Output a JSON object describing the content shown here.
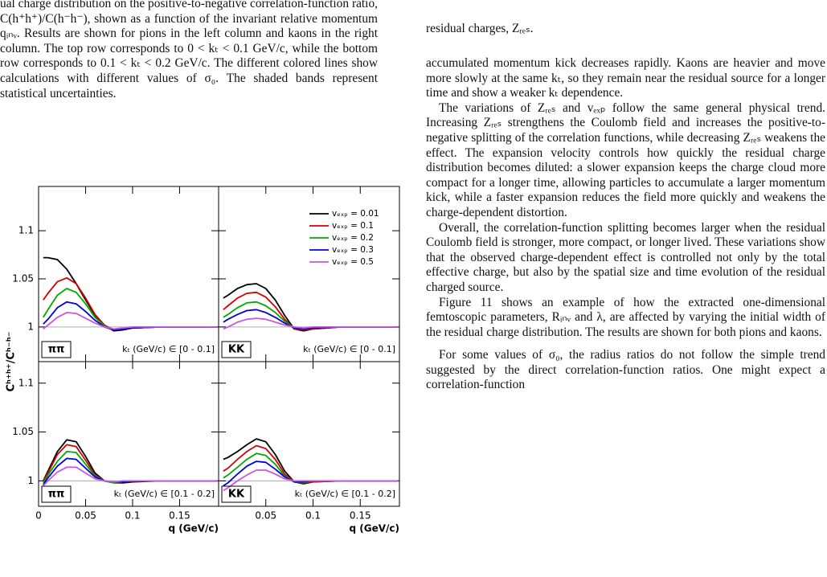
{
  "left_caption": "ual charge distribution on the positive-to-negative correlation-function ratio, C(h⁺h⁺)/C(h⁻h⁻), shown as a function of the invariant relative momentum qᵢₙᵥ. Results are shown for pions in the left column and kaons in the right column. The top row corresponds to 0 < kₜ < 0.1 GeV/c, while the bottom row corresponds to 0.1 < kₜ < 0.2 GeV/c. The different colored lines show calculations with different values of σ₀. The shaded bands represent statistical uncertainties.",
  "right_column": {
    "top_line": "residual charges, Zᵣₑₛ.",
    "paragraphs": [
      "accumulated momentum kick decreases rapidly. Kaons are heavier and move more slowly at the same kₜ, so they remain near the residual source for a longer time and show a weaker kₜ dependence.",
      "The variations of Zᵣₑₛ and vₑₓₚ follow the same general physical trend. Increasing Zᵣₑₛ strengthens the Coulomb field and increases the positive-to-negative splitting of the correlation functions, while decreasing Zᵣₑₛ weakens the effect. The expansion velocity controls how quickly the residual charge distribution becomes diluted: a slower expansion keeps the charge cloud more compact for a longer time, allowing particles to accumulate a larger momentum kick, while a faster expansion reduces the field more quickly and weakens the charge-dependent distortion.",
      "Overall, the correlation-function splitting becomes larger when the residual Coulomb field is stronger, more compact, or longer lived. These variations show that the observed charge-dependent effect is controlled not only by the total effective charge, but also by the spatial size and time evolution of the residual charged source.",
      "Figure 11 shows an example of how the extracted one-dimensional femtoscopic parameters, Rᵢₙᵥ and λ, are affected by varying the initial width of the residual charge distribution. The results are shown for both pions and kaons.",
      "For some values of σ₀, the radius ratios do not follow the simple trend suggested by the direct correlation-function ratios. One might expect a correlation-function"
    ]
  },
  "chart_data": [
    {
      "type": "line",
      "panel_label": "ππ",
      "kt_label": "kₜ (GeV/c) ∈ [0 - 0.1]",
      "ylabel": "Cʰ⁺ʰ⁺/Cʰ⁻ʰ⁻",
      "x": [
        0.005,
        0.01,
        0.02,
        0.03,
        0.04,
        0.05,
        0.06,
        0.07,
        0.08,
        0.09,
        0.1,
        0.13,
        0.19
      ],
      "xlim": [
        0,
        0.1915
      ],
      "ylim": [
        0.964,
        1.146
      ],
      "xticks": [
        0,
        0.05,
        0.1,
        0.15
      ],
      "yticks": [
        1,
        1.05,
        1.1
      ],
      "xtick_labels": false,
      "ytick_labels": true,
      "reference_line": 1,
      "series": [
        {
          "color": "#000000",
          "values": [
            1.072,
            1.072,
            1.07,
            1.06,
            1.045,
            1.028,
            1.012,
            1.002,
            0.996,
            0.997,
            0.999,
            1.0,
            1.0
          ]
        },
        {
          "color": "#d40000",
          "values": [
            1.028,
            1.035,
            1.047,
            1.051,
            1.045,
            1.03,
            1.013,
            1.002,
            0.997,
            0.998,
            0.999,
            1.0,
            1.0
          ]
        },
        {
          "color": "#00a800",
          "values": [
            1.01,
            1.018,
            1.033,
            1.04,
            1.036,
            1.024,
            1.01,
            1.001,
            0.997,
            0.998,
            0.999,
            1.0,
            1.0
          ]
        },
        {
          "color": "#0000dc",
          "values": [
            1.003,
            1.008,
            1.02,
            1.026,
            1.024,
            1.016,
            1.007,
            1.0,
            0.997,
            0.998,
            0.999,
            1.0,
            1.0
          ]
        },
        {
          "color": "#cc55dd",
          "values": [
            0.998,
            1.002,
            1.01,
            1.015,
            1.014,
            1.009,
            1.004,
            1.0,
            0.998,
            0.999,
            1.0,
            1.0,
            1.0
          ]
        }
      ]
    },
    {
      "type": "line",
      "panel_label": "KK",
      "kt_label": "kₜ (GeV/c) ∈ [0 - 0.1]",
      "x": [
        0.005,
        0.01,
        0.02,
        0.03,
        0.04,
        0.05,
        0.06,
        0.07,
        0.08,
        0.09,
        0.1,
        0.13,
        0.19
      ],
      "xlim": [
        0,
        0.1915
      ],
      "ylim": [
        0.964,
        1.146
      ],
      "xticks": [
        0.05,
        0.1,
        0.15
      ],
      "yticks": [
        1,
        1.05,
        1.1
      ],
      "xtick_labels": false,
      "ytick_labels": false,
      "reference_line": 1,
      "series": [
        {
          "name": "vₑₓₚ = 0.01",
          "color": "#000000",
          "values": [
            1.03,
            1.033,
            1.04,
            1.044,
            1.045,
            1.04,
            1.028,
            1.012,
            0.998,
            0.996,
            0.998,
            1.0,
            1.0
          ]
        },
        {
          "name": "vₑₓₚ = 0.1",
          "color": "#d40000",
          "values": [
            1.018,
            1.022,
            1.03,
            1.035,
            1.036,
            1.031,
            1.021,
            1.008,
            0.998,
            0.997,
            0.998,
            1.0,
            1.0
          ]
        },
        {
          "name": "vₑₓₚ = 0.2",
          "color": "#00a800",
          "values": [
            1.01,
            1.013,
            1.02,
            1.025,
            1.026,
            1.022,
            1.015,
            1.006,
            0.999,
            0.998,
            0.999,
            1.0,
            1.0
          ]
        },
        {
          "name": "vₑₓₚ = 0.3",
          "color": "#0000dc",
          "values": [
            1.005,
            1.008,
            1.013,
            1.017,
            1.018,
            1.015,
            1.01,
            1.004,
            0.999,
            0.998,
            0.999,
            1.0,
            1.0
          ]
        },
        {
          "name": "vₑₓₚ = 0.5",
          "color": "#cc55dd",
          "values": [
            0.998,
            1.0,
            1.005,
            1.008,
            1.009,
            1.008,
            1.005,
            1.002,
            1.0,
            0.999,
            1.0,
            1.0,
            1.0
          ]
        }
      ]
    },
    {
      "type": "line",
      "panel_label": "ππ",
      "kt_label": "kₜ (GeV/c) ∈ [0.1 - 0.2]",
      "xlabel": "q (GeV/c)",
      "x": [
        0.005,
        0.01,
        0.02,
        0.03,
        0.04,
        0.05,
        0.06,
        0.07,
        0.08,
        0.09,
        0.1,
        0.13,
        0.19
      ],
      "xlim": [
        0,
        0.1915
      ],
      "ylim": [
        0.974,
        1.122
      ],
      "xticks": [
        0,
        0.05,
        0.1,
        0.15
      ],
      "yticks": [
        1,
        1.05,
        1.1
      ],
      "xtick_labels": true,
      "ytick_labels": true,
      "reference_line": 1,
      "series": [
        {
          "color": "#000000",
          "values": [
            1.0,
            1.01,
            1.03,
            1.042,
            1.04,
            1.025,
            1.008,
            1.0,
            0.998,
            0.998,
            0.999,
            1.0,
            1.0
          ]
        },
        {
          "color": "#d40000",
          "values": [
            1.0,
            1.008,
            1.027,
            1.037,
            1.035,
            1.021,
            1.006,
            1.0,
            0.998,
            0.999,
            1.0,
            1.0,
            1.0
          ]
        },
        {
          "color": "#00a800",
          "values": [
            0.998,
            1.006,
            1.02,
            1.03,
            1.029,
            1.017,
            1.005,
            1.0,
            0.998,
            0.999,
            1.0,
            1.0,
            1.0
          ]
        },
        {
          "color": "#0000dc",
          "values": [
            0.996,
            1.003,
            1.015,
            1.023,
            1.022,
            1.013,
            1.004,
            1.0,
            0.999,
            0.999,
            1.0,
            1.0,
            1.0
          ]
        },
        {
          "color": "#cc55dd",
          "values": [
            0.995,
            1.0,
            1.009,
            1.014,
            1.014,
            1.008,
            1.002,
            1.0,
            0.999,
            1.0,
            1.0,
            1.0,
            1.0
          ]
        }
      ]
    },
    {
      "type": "line",
      "panel_label": "KK",
      "kt_label": "kₜ (GeV/c) ∈ [0.1 - 0.2]",
      "xlabel": "q (GeV/c)",
      "x": [
        0.005,
        0.01,
        0.02,
        0.03,
        0.04,
        0.05,
        0.06,
        0.07,
        0.08,
        0.09,
        0.1,
        0.13,
        0.19
      ],
      "xlim": [
        0,
        0.1915
      ],
      "ylim": [
        0.974,
        1.122
      ],
      "xticks": [
        0.05,
        0.1,
        0.15
      ],
      "yticks": [
        1,
        1.05,
        1.1
      ],
      "xtick_labels": true,
      "ytick_labels": false,
      "reference_line": 1,
      "series": [
        {
          "color": "#000000",
          "values": [
            1.022,
            1.024,
            1.03,
            1.037,
            1.043,
            1.04,
            1.027,
            1.01,
            0.999,
            0.997,
            0.999,
            1.0,
            1.0
          ]
        },
        {
          "color": "#d40000",
          "values": [
            1.01,
            1.013,
            1.022,
            1.03,
            1.036,
            1.033,
            1.022,
            1.007,
            0.999,
            0.998,
            0.999,
            1.0,
            1.0
          ]
        },
        {
          "color": "#00a800",
          "values": [
            1.003,
            1.006,
            1.014,
            1.022,
            1.028,
            1.026,
            1.017,
            1.005,
            0.999,
            0.998,
            1.0,
            1.0,
            1.0
          ]
        },
        {
          "color": "#0000dc",
          "values": [
            0.995,
            0.998,
            1.007,
            1.015,
            1.02,
            1.019,
            1.012,
            1.004,
            0.999,
            0.999,
            1.0,
            1.0,
            1.0
          ]
        },
        {
          "color": "#cc55dd",
          "values": [
            0.99,
            0.993,
            1.0,
            1.006,
            1.011,
            1.011,
            1.007,
            1.002,
            1.0,
            1.0,
            1.0,
            1.0,
            1.0
          ]
        }
      ]
    }
  ]
}
